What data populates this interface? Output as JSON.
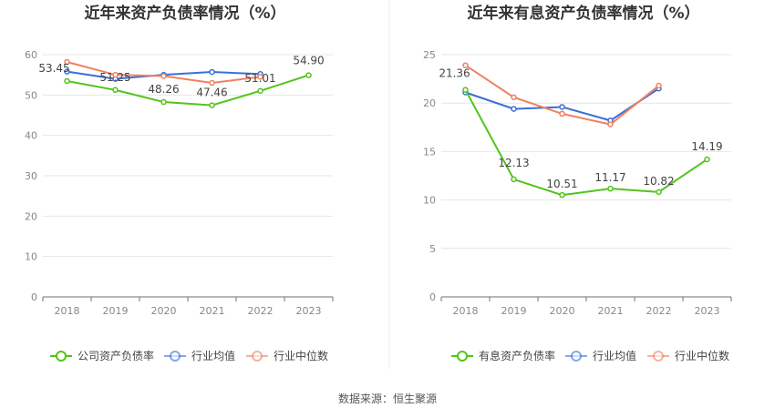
{
  "source_label": "数据来源：恒生聚源",
  "chart_data": [
    {
      "type": "line",
      "title": "近年来资产负债率情况（%）",
      "xlabel": "",
      "ylabel": "",
      "categories": [
        "2018",
        "2019",
        "2020",
        "2021",
        "2022",
        "2023"
      ],
      "ylim": [
        0,
        60
      ],
      "yticks": [
        0,
        10,
        20,
        30,
        40,
        50,
        60
      ],
      "grid": true,
      "legend_position": "bottom",
      "series": [
        {
          "name": "公司资产负债率",
          "color": "#52c41a",
          "values": [
            53.45,
            51.25,
            48.26,
            47.46,
            51.01,
            54.9
          ],
          "labels": [
            "53.45",
            "51.25",
            "48.26",
            "47.46",
            "51.01",
            "54.90"
          ]
        },
        {
          "name": "行业均值",
          "color": "#3a6fd8",
          "values": [
            55.8,
            54.0,
            55.0,
            55.7,
            55.2,
            null
          ]
        },
        {
          "name": "行业中位数",
          "color": "#f08060",
          "values": [
            58.2,
            55.0,
            54.7,
            53.0,
            54.5,
            null
          ]
        }
      ]
    },
    {
      "type": "line",
      "title": "近年来有息资产负债率情况（%）",
      "xlabel": "",
      "ylabel": "",
      "categories": [
        "2018",
        "2019",
        "2020",
        "2021",
        "2022",
        "2023"
      ],
      "ylim": [
        0,
        25
      ],
      "yticks": [
        0,
        5,
        10,
        15,
        20,
        25
      ],
      "grid": true,
      "legend_position": "bottom",
      "series": [
        {
          "name": "有息资产负债率",
          "color": "#52c41a",
          "values": [
            21.36,
            12.13,
            10.51,
            11.17,
            10.82,
            14.19
          ],
          "labels": [
            "21.36",
            "12.13",
            "10.51",
            "11.17",
            "10.82",
            "14.19"
          ]
        },
        {
          "name": "行业均值",
          "color": "#3a6fd8",
          "values": [
            21.1,
            19.4,
            19.6,
            18.2,
            21.5,
            null
          ]
        },
        {
          "name": "行业中位数",
          "color": "#f08060",
          "values": [
            23.9,
            20.6,
            18.9,
            17.8,
            21.8,
            null
          ]
        }
      ]
    }
  ]
}
